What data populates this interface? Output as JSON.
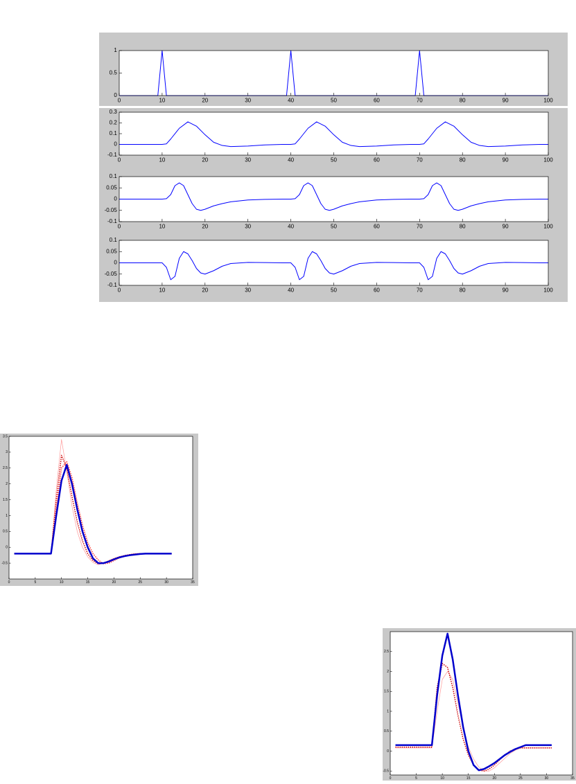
{
  "chart_data": [
    {
      "type": "line",
      "x": [
        0,
        9,
        10,
        11,
        39,
        40,
        41,
        69,
        70,
        71,
        100
      ],
      "series": [
        {
          "color": "#0000ff",
          "linewidth": 1,
          "linestyle": "solid",
          "values": [
            0,
            0,
            1,
            0,
            0,
            1,
            0,
            0,
            1,
            0,
            0
          ]
        }
      ],
      "xlim": [
        0,
        100
      ],
      "xticks": [
        0,
        10,
        20,
        30,
        40,
        50,
        60,
        70,
        80,
        90,
        100
      ],
      "ylim": [
        0,
        1
      ],
      "yticks": [
        0,
        0.5,
        1
      ]
    },
    {
      "type": "line",
      "x": [
        0,
        10,
        11,
        12,
        14,
        16,
        18,
        20,
        22,
        24,
        26,
        30,
        34,
        38,
        40,
        41,
        42,
        44,
        46,
        48,
        50,
        52,
        54,
        56,
        60,
        64,
        68,
        70,
        71,
        72,
        74,
        76,
        78,
        80,
        82,
        84,
        86,
        90,
        94,
        98,
        100
      ],
      "series": [
        {
          "color": "#0000ff",
          "linewidth": 1,
          "linestyle": "solid",
          "values": [
            0,
            0,
            0.005,
            0.05,
            0.15,
            0.21,
            0.17,
            0.09,
            0.02,
            -0.01,
            -0.02,
            -0.015,
            -0.005,
            0,
            0,
            0.005,
            0.05,
            0.15,
            0.21,
            0.17,
            0.09,
            0.02,
            -0.01,
            -0.02,
            -0.015,
            -0.005,
            0,
            0,
            0.005,
            0.05,
            0.15,
            0.21,
            0.17,
            0.09,
            0.02,
            -0.01,
            -0.02,
            -0.015,
            -0.005,
            0,
            0
          ]
        }
      ],
      "xlim": [
        0,
        100
      ],
      "xticks": [
        0,
        10,
        20,
        30,
        40,
        50,
        60,
        70,
        80,
        90,
        100
      ],
      "ylim": [
        -0.1,
        0.3
      ],
      "yticks": [
        -0.1,
        0,
        0.1,
        0.2,
        0.3
      ]
    },
    {
      "type": "line",
      "x": [
        0,
        10,
        11,
        12,
        13,
        14,
        15,
        16,
        17,
        18,
        19,
        20,
        22,
        24,
        26,
        30,
        34,
        38,
        40,
        41,
        42,
        43,
        44,
        45,
        46,
        47,
        48,
        49,
        50,
        52,
        54,
        56,
        60,
        64,
        68,
        70,
        71,
        72,
        73,
        74,
        75,
        76,
        77,
        78,
        79,
        80,
        82,
        84,
        86,
        90,
        94,
        98,
        100
      ],
      "series": [
        {
          "color": "#0000ff",
          "linewidth": 1,
          "linestyle": "solid",
          "values": [
            0,
            0,
            0.002,
            0.02,
            0.06,
            0.072,
            0.06,
            0.02,
            -0.02,
            -0.045,
            -0.05,
            -0.045,
            -0.03,
            -0.02,
            -0.012,
            -0.004,
            -0.001,
            0,
            0,
            0.002,
            0.02,
            0.06,
            0.072,
            0.06,
            0.02,
            -0.02,
            -0.045,
            -0.05,
            -0.045,
            -0.03,
            -0.02,
            -0.012,
            -0.004,
            -0.001,
            0,
            0,
            0.002,
            0.02,
            0.06,
            0.072,
            0.06,
            0.02,
            -0.02,
            -0.045,
            -0.05,
            -0.045,
            -0.03,
            -0.02,
            -0.012,
            -0.004,
            -0.001,
            0,
            0
          ]
        }
      ],
      "xlim": [
        0,
        100
      ],
      "xticks": [
        0,
        10,
        20,
        30,
        40,
        50,
        60,
        70,
        80,
        90,
        100
      ],
      "ylim": [
        -0.1,
        0.1
      ],
      "yticks": [
        -0.1,
        -0.05,
        0,
        0.05,
        0.1
      ]
    },
    {
      "type": "line",
      "x": [
        0,
        10,
        11,
        12,
        13,
        14,
        15,
        16,
        17,
        18,
        19,
        20,
        22,
        24,
        26,
        30,
        34,
        38,
        40,
        41,
        42,
        43,
        44,
        45,
        46,
        47,
        48,
        49,
        50,
        52,
        54,
        56,
        60,
        64,
        68,
        70,
        71,
        72,
        73,
        74,
        75,
        76,
        77,
        78,
        79,
        80,
        82,
        84,
        86,
        90,
        94,
        98,
        100
      ],
      "series": [
        {
          "color": "#0000ff",
          "linewidth": 1,
          "linestyle": "solid",
          "values": [
            0,
            0,
            -0.02,
            -0.075,
            -0.06,
            0.02,
            0.05,
            0.04,
            0.01,
            -0.025,
            -0.045,
            -0.05,
            -0.035,
            -0.015,
            -0.003,
            0.002,
            0.001,
            0,
            0,
            -0.02,
            -0.075,
            -0.06,
            0.02,
            0.05,
            0.04,
            0.01,
            -0.025,
            -0.045,
            -0.05,
            -0.035,
            -0.015,
            -0.003,
            0.002,
            0.001,
            0,
            0,
            -0.02,
            -0.075,
            -0.06,
            0.02,
            0.05,
            0.04,
            0.01,
            -0.025,
            -0.045,
            -0.05,
            -0.035,
            -0.015,
            -0.003,
            0.002,
            0.001,
            0,
            0
          ]
        }
      ],
      "xlim": [
        0,
        100
      ],
      "xticks": [
        0,
        10,
        20,
        30,
        40,
        50,
        60,
        70,
        80,
        90,
        100
      ],
      "ylim": [
        -0.1,
        0.1
      ],
      "yticks": [
        -0.1,
        -0.05,
        0,
        0.05,
        0.1
      ]
    },
    {
      "type": "line",
      "x": [
        1,
        2,
        3,
        4,
        5,
        6,
        7,
        8,
        9,
        10,
        11,
        12,
        13,
        14,
        15,
        16,
        17,
        18,
        19,
        20,
        21,
        22,
        23,
        24,
        25,
        26,
        27,
        28,
        29,
        30,
        31
      ],
      "series": [
        {
          "color": "#ff9999",
          "linewidth": 0.7,
          "linestyle": "solid",
          "values": [
            -0.2,
            -0.2,
            -0.2,
            -0.2,
            -0.2,
            -0.2,
            -0.2,
            -0.2,
            1.8,
            3.4,
            2.4,
            1.3,
            0.5,
            0,
            -0.3,
            -0.48,
            -0.55,
            -0.5,
            -0.42,
            -0.35,
            -0.3,
            -0.26,
            -0.23,
            -0.21,
            -0.2,
            -0.2,
            -0.2,
            -0.2,
            -0.2,
            -0.2,
            -0.2
          ]
        },
        {
          "color": "#cc0000",
          "linewidth": 1.5,
          "linestyle": "dotted",
          "values": [
            -0.2,
            -0.2,
            -0.2,
            -0.2,
            -0.2,
            -0.2,
            -0.2,
            -0.2,
            1.5,
            2.9,
            2.5,
            1.6,
            0.8,
            0.2,
            -0.2,
            -0.42,
            -0.52,
            -0.5,
            -0.43,
            -0.36,
            -0.3,
            -0.26,
            -0.23,
            -0.21,
            -0.2,
            -0.2,
            -0.2,
            -0.2,
            -0.2,
            -0.2,
            -0.2
          ]
        },
        {
          "color": "#ff3333",
          "linewidth": 1.5,
          "linestyle": "dotted",
          "values": [
            -0.2,
            -0.2,
            -0.2,
            -0.2,
            -0.2,
            -0.2,
            -0.2,
            -0.2,
            1.2,
            2.5,
            2.7,
            2.2,
            1.4,
            0.7,
            0.15,
            -0.2,
            -0.4,
            -0.52,
            -0.5,
            -0.42,
            -0.34,
            -0.28,
            -0.24,
            -0.21,
            -0.2,
            -0.2,
            -0.2,
            -0.2,
            -0.2,
            -0.2,
            -0.2
          ]
        },
        {
          "color": "#0000cc",
          "linewidth": 2.5,
          "linestyle": "solid",
          "values": [
            -0.2,
            -0.2,
            -0.2,
            -0.2,
            -0.2,
            -0.2,
            -0.2,
            -0.2,
            1,
            2.1,
            2.6,
            2,
            1.2,
            0.5,
            0,
            -0.35,
            -0.5,
            -0.5,
            -0.45,
            -0.38,
            -0.32,
            -0.28,
            -0.25,
            -0.23,
            -0.21,
            -0.2,
            -0.2,
            -0.2,
            -0.2,
            -0.2,
            -0.2
          ]
        }
      ],
      "xlim": [
        0,
        35
      ],
      "xticks": [
        0,
        5,
        10,
        15,
        20,
        25,
        30,
        35
      ],
      "ylim": [
        -1,
        3.5
      ],
      "yticks": [
        -0.5,
        0,
        0.5,
        1,
        1.5,
        2,
        2.5,
        3,
        3.5
      ]
    },
    {
      "type": "line",
      "x": [
        1,
        2,
        3,
        4,
        5,
        6,
        7,
        8,
        9,
        10,
        11,
        12,
        13,
        14,
        15,
        16,
        17,
        18,
        19,
        20,
        21,
        22,
        23,
        24,
        25,
        26,
        27,
        28,
        29,
        30,
        31
      ],
      "series": [
        {
          "color": "#ff9999",
          "linewidth": 0.7,
          "linestyle": "solid",
          "values": [
            0.08,
            0.08,
            0.08,
            0.08,
            0.08,
            0.08,
            0.08,
            0.08,
            1,
            1.8,
            2,
            1.8,
            1.2,
            0.6,
            0.1,
            -0.2,
            -0.4,
            -0.5,
            -0.5,
            -0.42,
            -0.3,
            -0.18,
            -0.06,
            0.02,
            0.08,
            0.08,
            0.08,
            0.08,
            0.08,
            0.08,
            0.08
          ]
        },
        {
          "color": "#cc0000",
          "linewidth": 1.5,
          "linestyle": "dotted",
          "values": [
            0.1,
            0.1,
            0.1,
            0.1,
            0.1,
            0.1,
            0.1,
            0.1,
            1.6,
            2.2,
            2.1,
            1.6,
            0.9,
            0.3,
            -0.1,
            -0.35,
            -0.48,
            -0.5,
            -0.45,
            -0.35,
            -0.22,
            -0.1,
            0,
            0.05,
            0.08,
            0.08,
            0.08,
            0.08,
            0.08,
            0.08,
            0.08
          ]
        },
        {
          "color": "#0000cc",
          "linewidth": 2.5,
          "linestyle": "solid",
          "values": [
            0.15,
            0.15,
            0.15,
            0.15,
            0.15,
            0.15,
            0.15,
            0.15,
            1.4,
            2.4,
            2.95,
            2.3,
            1.4,
            0.6,
            0,
            -0.35,
            -0.48,
            -0.45,
            -0.38,
            -0.3,
            -0.2,
            -0.1,
            -0.02,
            0.05,
            0.1,
            0.15,
            0.15,
            0.15,
            0.15,
            0.15,
            0.15
          ]
        }
      ],
      "xlim": [
        0,
        35
      ],
      "xticks": [
        0,
        5,
        10,
        15,
        20,
        25,
        30,
        35
      ],
      "ylim": [
        -0.6,
        3
      ],
      "yticks": [
        -0.5,
        0,
        0.5,
        1,
        1.5,
        2,
        2.5
      ]
    }
  ]
}
